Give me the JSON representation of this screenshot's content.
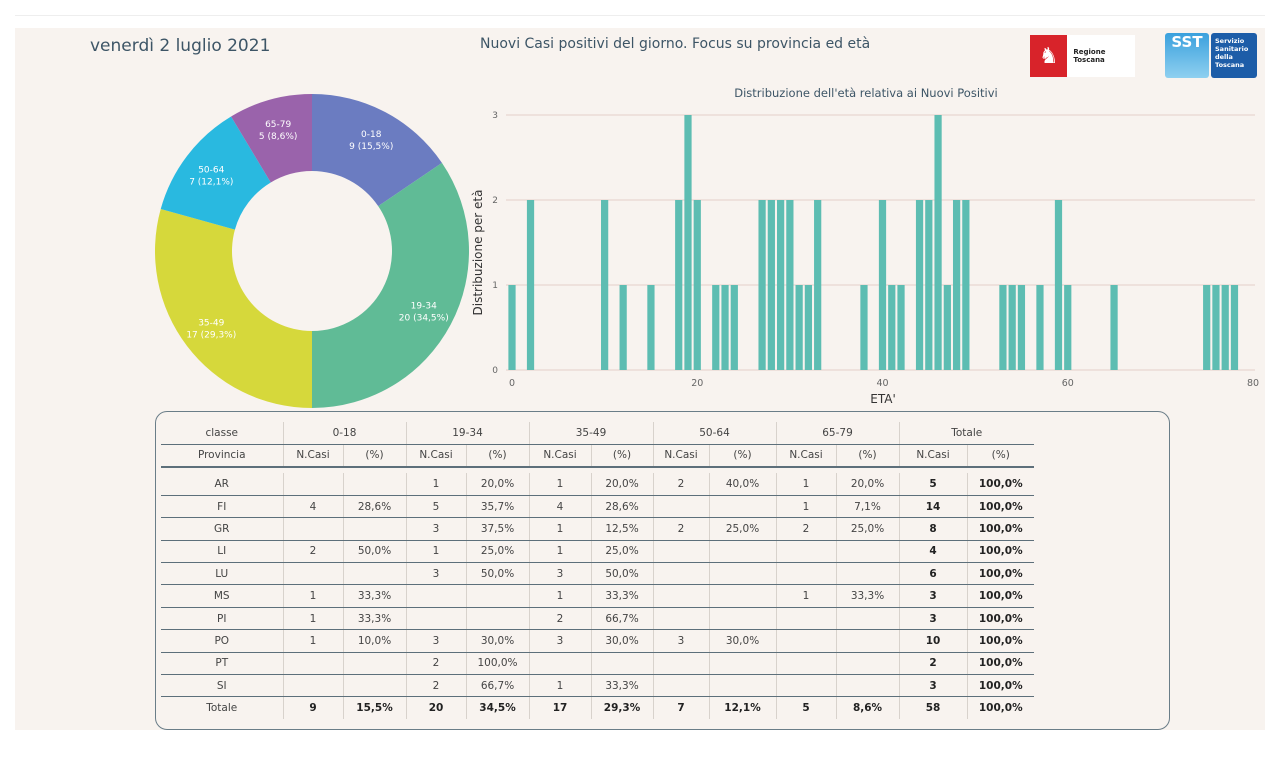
{
  "header": {
    "date": "venerdì 2 luglio 2021",
    "title": "Nuovi Casi positivi del giorno. Focus su provincia ed età",
    "logo_regione": "Regione Toscana",
    "logo_sst": "SST",
    "logo_sst_text": "Servizio Sanitario della Toscana"
  },
  "chart_data": [
    {
      "type": "pie",
      "donut": true,
      "categories": [
        "0-18",
        "19-34",
        "35-49",
        "50-64",
        "65-79"
      ],
      "values": [
        9,
        20,
        17,
        7,
        5
      ],
      "labels": [
        "9 (15,5%)",
        "20 (34,5%)",
        "17 (29,3%)",
        "7 (12,1%)",
        "5 (8,6%)"
      ],
      "colors": [
        "#6b7cc1",
        "#60bb96",
        "#d6d83b",
        "#29b9e0",
        "#9a63ab"
      ]
    },
    {
      "type": "bar",
      "title": "Distribuzione dell'età relativa ai Nuovi Positivi",
      "xlabel": "ETA'",
      "ylabel": "Distribuzione per età",
      "xlim": [
        0,
        80
      ],
      "ylim": [
        0,
        3
      ],
      "xticks": [
        "0",
        "20",
        "40",
        "60",
        "80"
      ],
      "yticks": [
        "0",
        "1",
        "2",
        "3"
      ],
      "grid": "horizontal",
      "color": "#5dbdb2",
      "x": [
        0,
        2,
        10,
        12,
        15,
        18,
        19,
        20,
        22,
        23,
        24,
        27,
        28,
        29,
        30,
        31,
        32,
        33,
        38,
        40,
        41,
        42,
        44,
        45,
        46,
        47,
        48,
        49,
        53,
        54,
        55,
        57,
        59,
        60,
        65,
        75,
        76,
        77,
        78
      ],
      "y": [
        1,
        2,
        2,
        1,
        1,
        2,
        3,
        2,
        1,
        1,
        1,
        2,
        2,
        2,
        2,
        1,
        1,
        2,
        1,
        2,
        1,
        1,
        2,
        2,
        3,
        1,
        2,
        2,
        1,
        1,
        1,
        1,
        2,
        1,
        1,
        1,
        1,
        1,
        1
      ]
    }
  ],
  "table": {
    "h1": [
      "classe",
      "0-18",
      "19-34",
      "35-49",
      "50-64",
      "65-79",
      "Totale"
    ],
    "h2": [
      "Provincia",
      "N.Casi",
      "(%)",
      "N.Casi",
      "(%)",
      "N.Casi",
      "(%)",
      "N.Casi",
      "(%)",
      "N.Casi",
      "(%)",
      "N.Casi",
      "(%)"
    ],
    "rows": [
      [
        "AR",
        "",
        "",
        "1",
        "20,0%",
        "1",
        "20,0%",
        "2",
        "40,0%",
        "1",
        "20,0%",
        "5",
        "100,0%"
      ],
      [
        "FI",
        "4",
        "28,6%",
        "5",
        "35,7%",
        "4",
        "28,6%",
        "",
        "",
        "1",
        "7,1%",
        "14",
        "100,0%"
      ],
      [
        "GR",
        "",
        "",
        "3",
        "37,5%",
        "1",
        "12,5%",
        "2",
        "25,0%",
        "2",
        "25,0%",
        "8",
        "100,0%"
      ],
      [
        "LI",
        "2",
        "50,0%",
        "1",
        "25,0%",
        "1",
        "25,0%",
        "",
        "",
        "",
        "",
        "4",
        "100,0%"
      ],
      [
        "LU",
        "",
        "",
        "3",
        "50,0%",
        "3",
        "50,0%",
        "",
        "",
        "",
        "",
        "6",
        "100,0%"
      ],
      [
        "MS",
        "1",
        "33,3%",
        "",
        "",
        "1",
        "33,3%",
        "",
        "",
        "1",
        "33,3%",
        "3",
        "100,0%"
      ],
      [
        "PI",
        "1",
        "33,3%",
        "",
        "",
        "2",
        "66,7%",
        "",
        "",
        "",
        "",
        "3",
        "100,0%"
      ],
      [
        "PO",
        "1",
        "10,0%",
        "3",
        "30,0%",
        "3",
        "30,0%",
        "3",
        "30,0%",
        "",
        "",
        "10",
        "100,0%"
      ],
      [
        "PT",
        "",
        "",
        "2",
        "100,0%",
        "",
        "",
        "",
        "",
        "",
        "",
        "2",
        "100,0%"
      ],
      [
        "SI",
        "",
        "",
        "2",
        "66,7%",
        "1",
        "33,3%",
        "",
        "",
        "",
        "",
        "3",
        "100,0%"
      ]
    ],
    "total": [
      "Totale",
      "9",
      "15,5%",
      "20",
      "34,5%",
      "17",
      "29,3%",
      "7",
      "12,1%",
      "5",
      "8,6%",
      "58",
      "100,0%"
    ]
  }
}
